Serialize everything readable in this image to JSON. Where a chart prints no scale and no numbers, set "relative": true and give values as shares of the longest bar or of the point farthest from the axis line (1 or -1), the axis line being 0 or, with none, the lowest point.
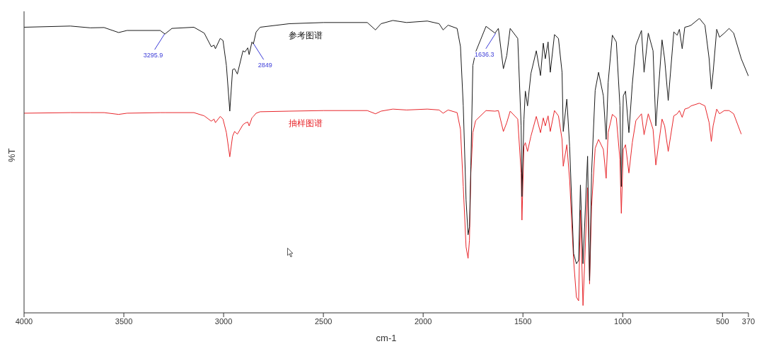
{
  "chart_data": {
    "type": "line",
    "relative": true,
    "xlabel": "cm-1",
    "ylabel": "%T",
    "xlim": [
      4000,
      370
    ],
    "xticks": [
      4000,
      3500,
      3000,
      2500,
      2000,
      1500,
      1000,
      500,
      370
    ],
    "annotations": [
      {
        "text": "3295.9",
        "x": 3295.9,
        "y": 0.947
      },
      {
        "text": "2849",
        "x": 2849,
        "y": 0.913
      },
      {
        "text": "1636.3",
        "x": 1636.3,
        "y": 0.95
      }
    ],
    "x": [
      4000,
      3768,
      3668,
      3599,
      3526,
      3484,
      3318,
      3294,
      3259,
      3149,
      3097,
      3062,
      3048,
      3041,
      3017,
      3003,
      2986,
      2969,
      2955,
      2945,
      2931,
      2903,
      2893,
      2879,
      2872,
      2858,
      2851,
      2837,
      2817,
      2671,
      2498,
      2280,
      2239,
      2211,
      2152,
      2083,
      1979,
      1920,
      1900,
      1875,
      1830,
      1813,
      1799,
      1785,
      1775,
      1768,
      1761,
      1751,
      1737,
      1685,
      1640,
      1623,
      1598,
      1581,
      1564,
      1526,
      1509,
      1505,
      1495,
      1488,
      1477,
      1460,
      1433,
      1412,
      1398,
      1388,
      1374,
      1363,
      1342,
      1322,
      1304,
      1298,
      1280,
      1266,
      1246,
      1232,
      1221,
      1212,
      1199,
      1176,
      1166,
      1156,
      1138,
      1121,
      1097,
      1083,
      1073,
      1052,
      1032,
      1014,
      1007,
      997,
      986,
      969,
      952,
      934,
      906,
      893,
      872,
      848,
      834,
      803,
      790,
      772,
      744,
      727,
      716,
      702,
      689,
      671,
      657,
      616,
      588,
      567,
      556,
      547,
      529,
      515,
      491,
      467,
      444,
      406,
      370
    ],
    "series": [
      {
        "name": "参考图谱",
        "color": "#1a1a1a",
        "values": [
          0.97,
          0.974,
          0.968,
          0.969,
          0.952,
          0.959,
          0.959,
          0.947,
          0.966,
          0.97,
          0.95,
          0.904,
          0.909,
          0.897,
          0.932,
          0.925,
          0.84,
          0.685,
          0.826,
          0.829,
          0.811,
          0.89,
          0.886,
          0.9,
          0.877,
          0.92,
          0.913,
          0.954,
          0.97,
          0.982,
          0.986,
          0.986,
          0.961,
          0.982,
          0.993,
          0.986,
          0.991,
          0.982,
          0.961,
          0.977,
          0.966,
          0.904,
          0.703,
          0.384,
          0.265,
          0.292,
          0.498,
          0.84,
          0.886,
          0.973,
          0.95,
          0.966,
          0.829,
          0.874,
          0.966,
          0.932,
          0.635,
          0.395,
          0.658,
          0.753,
          0.703,
          0.813,
          0.89,
          0.806,
          0.916,
          0.863,
          0.92,
          0.817,
          0.945,
          0.932,
          0.817,
          0.616,
          0.726,
          0.566,
          0.201,
          0.167,
          0.178,
          0.434,
          0.167,
          0.532,
          0.11,
          0.475,
          0.756,
          0.817,
          0.737,
          0.589,
          0.783,
          0.943,
          0.92,
          0.703,
          0.429,
          0.737,
          0.753,
          0.612,
          0.776,
          0.909,
          0.959,
          0.817,
          0.95,
          0.89,
          0.635,
          0.927,
          0.863,
          0.721,
          0.954,
          0.943,
          0.963,
          0.897,
          0.97,
          0.973,
          0.977,
          1.0,
          0.977,
          0.863,
          0.76,
          0.817,
          0.963,
          0.936,
          0.95,
          0.966,
          0.95,
          0.863,
          0.804
        ]
      },
      {
        "name": "抽样图谱",
        "color": "#e8262b",
        "x": [
          4000,
          3768,
          3668,
          3599,
          3526,
          3484,
          3318,
          3294,
          3259,
          3149,
          3097,
          3062,
          3048,
          3041,
          3017,
          3003,
          2986,
          2969,
          2955,
          2945,
          2931,
          2903,
          2893,
          2879,
          2872,
          2858,
          2851,
          2837,
          2817,
          2671,
          2498,
          2280,
          2239,
          2211,
          2152,
          2083,
          1979,
          1920,
          1900,
          1875,
          1830,
          1813,
          1799,
          1785,
          1775,
          1768,
          1761,
          1751,
          1737,
          1685,
          1640,
          1623,
          1598,
          1581,
          1564,
          1526,
          1509,
          1505,
          1495,
          1488,
          1477,
          1460,
          1433,
          1412,
          1398,
          1388,
          1374,
          1363,
          1342,
          1322,
          1304,
          1298,
          1280,
          1266,
          1246,
          1232,
          1221,
          1212,
          1199,
          1176,
          1166,
          1156,
          1138,
          1121,
          1097,
          1083,
          1073,
          1052,
          1032,
          1014,
          1007,
          997,
          986,
          969,
          952,
          934,
          906,
          893,
          872,
          848,
          834,
          803,
          790,
          772,
          744,
          727,
          716,
          702,
          689,
          671,
          657,
          616,
          588,
          567,
          556,
          547,
          529,
          515,
          491,
          467,
          444,
          406
        ],
        "values": [
          0.678,
          0.68,
          0.68,
          0.68,
          0.674,
          0.678,
          0.68,
          0.68,
          0.68,
          0.68,
          0.669,
          0.651,
          0.658,
          0.646,
          0.667,
          0.658,
          0.612,
          0.53,
          0.6,
          0.616,
          0.607,
          0.639,
          0.644,
          0.648,
          0.635,
          0.662,
          0.667,
          0.678,
          0.683,
          0.685,
          0.687,
          0.687,
          0.676,
          0.685,
          0.692,
          0.689,
          0.692,
          0.689,
          0.678,
          0.689,
          0.68,
          0.623,
          0.429,
          0.224,
          0.185,
          0.247,
          0.475,
          0.612,
          0.653,
          0.687,
          0.685,
          0.687,
          0.616,
          0.646,
          0.685,
          0.658,
          0.475,
          0.315,
          0.566,
          0.578,
          0.548,
          0.6,
          0.667,
          0.612,
          0.662,
          0.635,
          0.669,
          0.616,
          0.687,
          0.669,
          0.589,
          0.498,
          0.571,
          0.452,
          0.178,
          0.053,
          0.041,
          0.349,
          0.025,
          0.425,
          0.098,
          0.361,
          0.559,
          0.589,
          0.555,
          0.457,
          0.612,
          0.674,
          0.662,
          0.521,
          0.338,
          0.555,
          0.571,
          0.475,
          0.578,
          0.653,
          0.676,
          0.605,
          0.676,
          0.623,
          0.502,
          0.658,
          0.635,
          0.548,
          0.669,
          0.676,
          0.687,
          0.664,
          0.692,
          0.696,
          0.703,
          0.712,
          0.703,
          0.646,
          0.582,
          0.635,
          0.692,
          0.676,
          0.687,
          0.687,
          0.676,
          0.607
        ]
      }
    ]
  }
}
